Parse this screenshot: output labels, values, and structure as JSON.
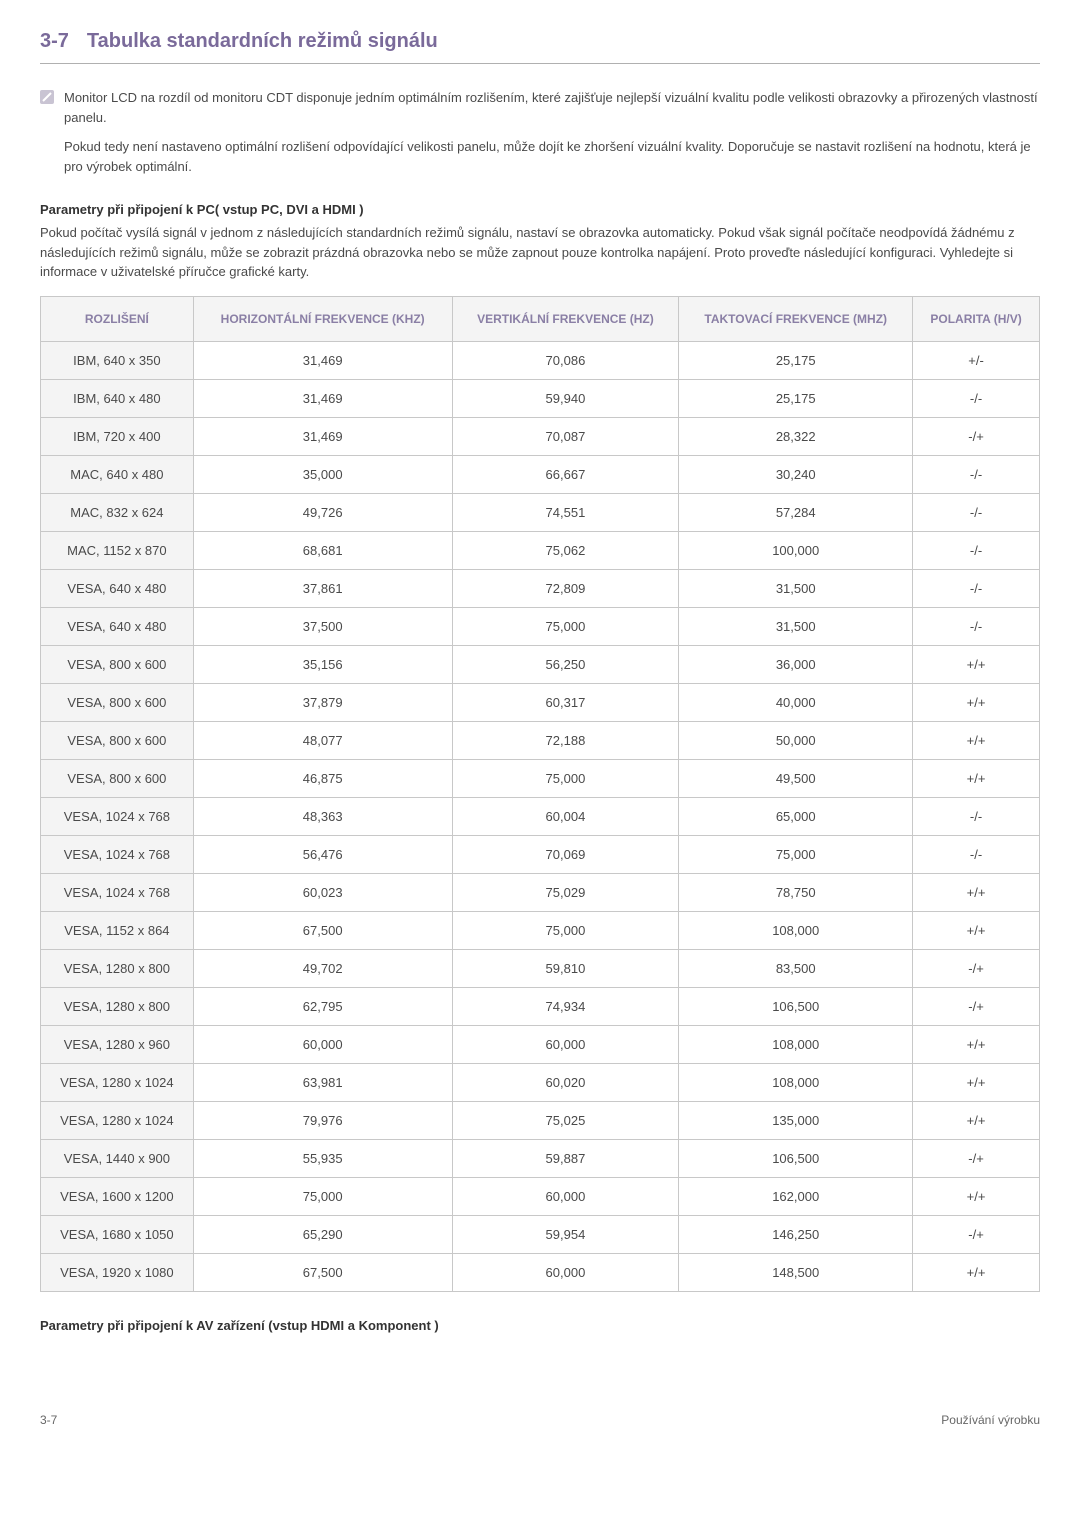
{
  "section": {
    "number": "3-7",
    "title": "Tabulka standardních režimů signálu"
  },
  "note": {
    "p1": "Monitor LCD na rozdíl od monitoru CDT disponuje jedním optimálním rozlišením, které zajišťuje nejlepší vizuální kvalitu podle velikosti obrazovky a přirozených vlastností panelu.",
    "p2": "Pokud tedy není nastaveno optimální rozlišení odpovídající velikosti panelu, může dojít ke zhoršení vizuální kvality. Doporučuje se nastavit rozlišení na hodnotu, která je pro výrobek optimální."
  },
  "heading1": "Parametry při připojení k PC( vstup PC, DVI a HDMI )",
  "para1": "Pokud počítač vysílá signál v jednom z následujících standardních režimů signálu, nastaví se obrazovka automaticky. Pokud však signál počítače neodpovídá žádnému z následujících režimů signálu, může se zobrazit prázdná obrazovka nebo se může zapnout pouze kontrolka napájení. Proto proveďte následující konfiguraci. Vyhledejte si informace v uživatelské příručce grafické karty.",
  "table": {
    "headers": {
      "c0": "ROZLIŠENÍ",
      "c1": "HORIZONTÁLNÍ FREKVENCE (KHZ)",
      "c2": "VERTIKÁLNÍ FREKVENCE (HZ)",
      "c3": "TAKTOVACÍ FREKVENCE (MHZ)",
      "c4": "POLARITA (H/V)"
    },
    "rows": [
      {
        "c0": "IBM, 640 x 350",
        "c1": "31,469",
        "c2": "70,086",
        "c3": "25,175",
        "c4": "+/-"
      },
      {
        "c0": "IBM, 640 x 480",
        "c1": "31,469",
        "c2": "59,940",
        "c3": "25,175",
        "c4": "-/-"
      },
      {
        "c0": "IBM, 720 x 400",
        "c1": "31,469",
        "c2": "70,087",
        "c3": "28,322",
        "c4": "-/+"
      },
      {
        "c0": "MAC, 640 x 480",
        "c1": "35,000",
        "c2": "66,667",
        "c3": "30,240",
        "c4": "-/-"
      },
      {
        "c0": "MAC, 832 x 624",
        "c1": "49,726",
        "c2": "74,551",
        "c3": "57,284",
        "c4": "-/-"
      },
      {
        "c0": "MAC, 1152 x 870",
        "c1": "68,681",
        "c2": "75,062",
        "c3": "100,000",
        "c4": "-/-"
      },
      {
        "c0": "VESA, 640 x 480",
        "c1": "37,861",
        "c2": "72,809",
        "c3": "31,500",
        "c4": "-/-"
      },
      {
        "c0": "VESA, 640 x 480",
        "c1": "37,500",
        "c2": "75,000",
        "c3": "31,500",
        "c4": "-/-"
      },
      {
        "c0": "VESA, 800 x 600",
        "c1": "35,156",
        "c2": "56,250",
        "c3": "36,000",
        "c4": "+/+"
      },
      {
        "c0": "VESA, 800 x 600",
        "c1": "37,879",
        "c2": "60,317",
        "c3": "40,000",
        "c4": "+/+"
      },
      {
        "c0": "VESA, 800 x 600",
        "c1": "48,077",
        "c2": "72,188",
        "c3": "50,000",
        "c4": "+/+"
      },
      {
        "c0": "VESA, 800 x 600",
        "c1": "46,875",
        "c2": "75,000",
        "c3": "49,500",
        "c4": "+/+"
      },
      {
        "c0": "VESA, 1024 x 768",
        "c1": "48,363",
        "c2": "60,004",
        "c3": "65,000",
        "c4": "-/-"
      },
      {
        "c0": "VESA, 1024 x 768",
        "c1": "56,476",
        "c2": "70,069",
        "c3": "75,000",
        "c4": "-/-"
      },
      {
        "c0": "VESA, 1024 x 768",
        "c1": "60,023",
        "c2": "75,029",
        "c3": "78,750",
        "c4": "+/+"
      },
      {
        "c0": "VESA, 1152 x 864",
        "c1": "67,500",
        "c2": "75,000",
        "c3": "108,000",
        "c4": "+/+"
      },
      {
        "c0": "VESA, 1280 x 800",
        "c1": "49,702",
        "c2": "59,810",
        "c3": "83,500",
        "c4": "-/+"
      },
      {
        "c0": "VESA, 1280 x 800",
        "c1": "62,795",
        "c2": "74,934",
        "c3": "106,500",
        "c4": "-/+"
      },
      {
        "c0": "VESA, 1280 x 960",
        "c1": "60,000",
        "c2": "60,000",
        "c3": "108,000",
        "c4": "+/+"
      },
      {
        "c0": "VESA, 1280 x 1024",
        "c1": "63,981",
        "c2": "60,020",
        "c3": "108,000",
        "c4": "+/+"
      },
      {
        "c0": "VESA, 1280 x 1024",
        "c1": "79,976",
        "c2": "75,025",
        "c3": "135,000",
        "c4": "+/+"
      },
      {
        "c0": "VESA, 1440 x 900",
        "c1": "55,935",
        "c2": "59,887",
        "c3": "106,500",
        "c4": "-/+"
      },
      {
        "c0": "VESA, 1600 x 1200",
        "c1": "75,000",
        "c2": "60,000",
        "c3": "162,000",
        "c4": "+/+"
      },
      {
        "c0": "VESA, 1680 x 1050",
        "c1": "65,290",
        "c2": "59,954",
        "c3": "146,250",
        "c4": "-/+"
      },
      {
        "c0": "VESA, 1920 x 1080",
        "c1": "67,500",
        "c2": "60,000",
        "c3": "148,500",
        "c4": "+/+"
      }
    ]
  },
  "heading2": "Parametry při připojení k AV zařízení (vstup HDMI a Komponent )",
  "footer": {
    "left": "3-7",
    "right": "Používání výrobku"
  },
  "colors": {
    "heading": "#7a6a9a",
    "th_text": "#8a7fa5",
    "th_bg": "#f4f4f4",
    "border": "#c8c8c8",
    "body_text": "#4a4a4a"
  }
}
